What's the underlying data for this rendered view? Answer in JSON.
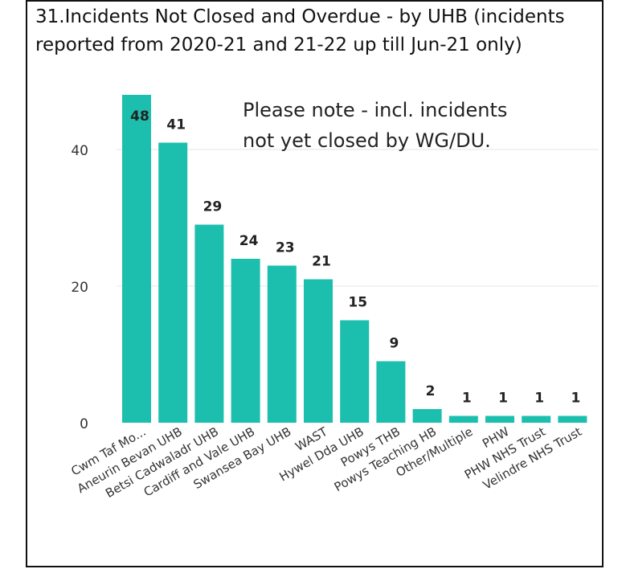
{
  "title": "31.Incidents Not Closed and Overdue - by UHB (incidents reported from 2020-21 and 21-22 up till Jun-21 only)",
  "annotation": {
    "line1": "Please note - incl. incidents",
    "line2": "not yet closed by WG/DU."
  },
  "colors": {
    "bar": "#1CBFAE",
    "grid": "#E6E6E6",
    "text": "#222222",
    "axis_text": "#333333"
  },
  "chart_data": {
    "type": "bar",
    "title": "31.Incidents Not Closed and Overdue - by UHB (incidents reported from 2020-21 and 21-22 up till Jun-21 only)",
    "categories": [
      "Cwm Taf Mo...",
      "Aneurin Bevan UHB",
      "Betsi Cadwaladr UHB",
      "Cardiff and Vale UHB",
      "Swansea Bay UHB",
      "WAST",
      "Hywel Dda UHB",
      "Powys THB",
      "Powys Teaching HB",
      "Other/Multiple",
      "PHW",
      "PHW NHS Trust",
      "Velindre NHS Trust"
    ],
    "values": [
      48,
      41,
      29,
      24,
      23,
      21,
      15,
      9,
      2,
      1,
      1,
      1,
      1
    ],
    "data_labels": [
      "48",
      "41",
      "29",
      "24",
      "23",
      "21",
      "15",
      "9",
      "2",
      "1",
      "1",
      "1",
      "1"
    ],
    "yticks": [
      0,
      20,
      40
    ],
    "ytick_labels": [
      "0",
      "20",
      "40"
    ],
    "ylim": [
      0,
      50
    ],
    "grid": true,
    "legend": "none",
    "xlabel": "",
    "ylabel": ""
  }
}
